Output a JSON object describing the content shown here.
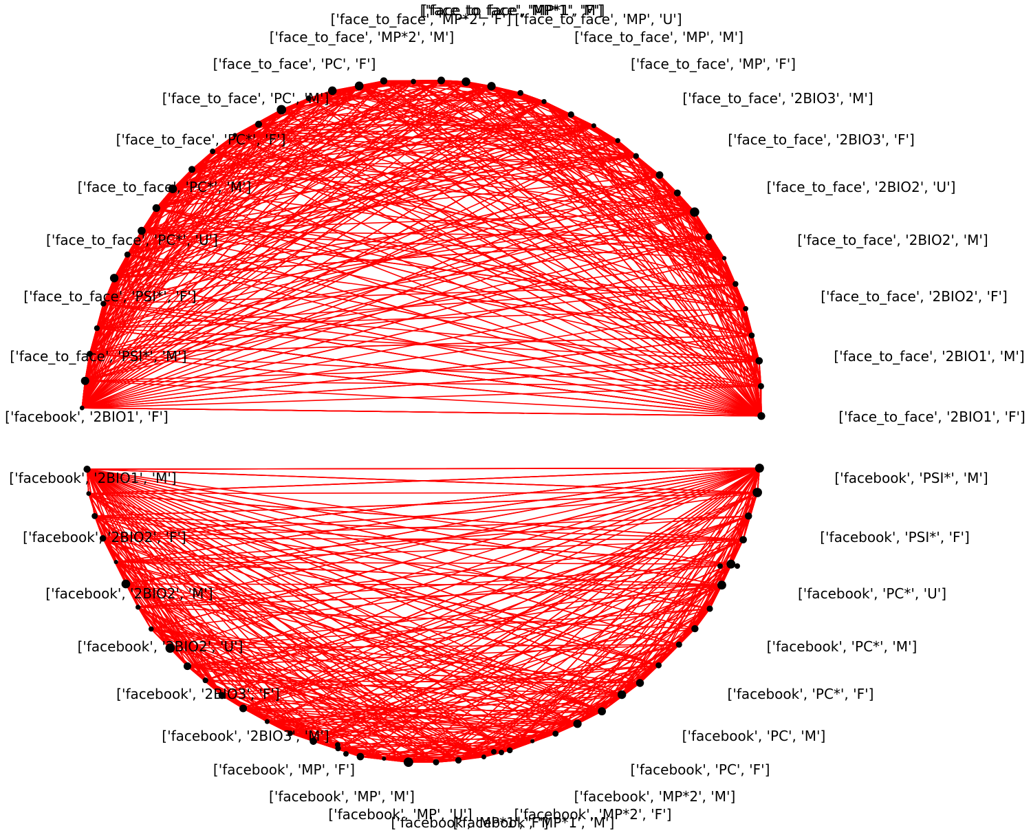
{
  "diagram": {
    "type": "circular-network-graph",
    "edge_color": "#ff0000",
    "node_color": "#000000",
    "background": "#ffffff",
    "top_groups": [
      "['face_to_face', 'MP*1', 'F']",
      "['face_to_face', 'MP', 'U']",
      "['face_to_face', 'MP', 'M']",
      "['face_to_face', 'MP', 'F']",
      "['face_to_face', '2BIO3', 'M']",
      "['face_to_face', '2BIO3', 'F']",
      "['face_to_face', '2BIO2', 'U']",
      "['face_to_face', '2BIO2', 'M']",
      "['face_to_face', '2BIO2', 'F']",
      "['face_to_face', '2BIO1', 'M']",
      "['face_to_face', '2BIO1', 'F']",
      "['face_to_face', 'MP*1', 'M']",
      "['face_to_face', 'MP*2', 'F']",
      "['face_to_face', 'MP*2', 'M']",
      "['face_to_face', 'PC', 'F']",
      "['face_to_face', 'PC', 'M']",
      "['face_to_face', 'PC*', 'F']",
      "['face_to_face', 'PC*', 'M']",
      "['face_to_face', 'PC*', 'U']",
      "['face_to_face', 'PSI*', 'F']",
      "['face_to_face', 'PSI*', 'M']"
    ],
    "bottom_groups": [
      "['facebook', 'PSI*', 'M']",
      "['facebook', 'PSI*', 'F']",
      "['facebook', 'PC*', 'U']",
      "['facebook', 'PC*', 'M']",
      "['facebook', 'PC*', 'F']",
      "['facebook', 'PC', 'M']",
      "['facebook', 'PC', 'F']",
      "['facebook', 'MP*2', 'M']",
      "['facebook', 'MP*2', 'F']",
      "['facebook', 'MP*1', 'M']",
      "['facebook', 'MP*1', 'F']",
      "['facebook', 'MP', 'U']",
      "['facebook', 'MP', 'M']",
      "['facebook', 'MP', 'F']",
      "['facebook', '2BIO3', 'M']",
      "['facebook', '2BIO3', 'F']",
      "['facebook', '2BIO2', 'U']",
      "['facebook', '2BIO2', 'M']",
      "['facebook', '2BIO2', 'F']",
      "['facebook', '2BIO1', 'M']",
      "['facebook', '2BIO1', 'F']"
    ]
  }
}
